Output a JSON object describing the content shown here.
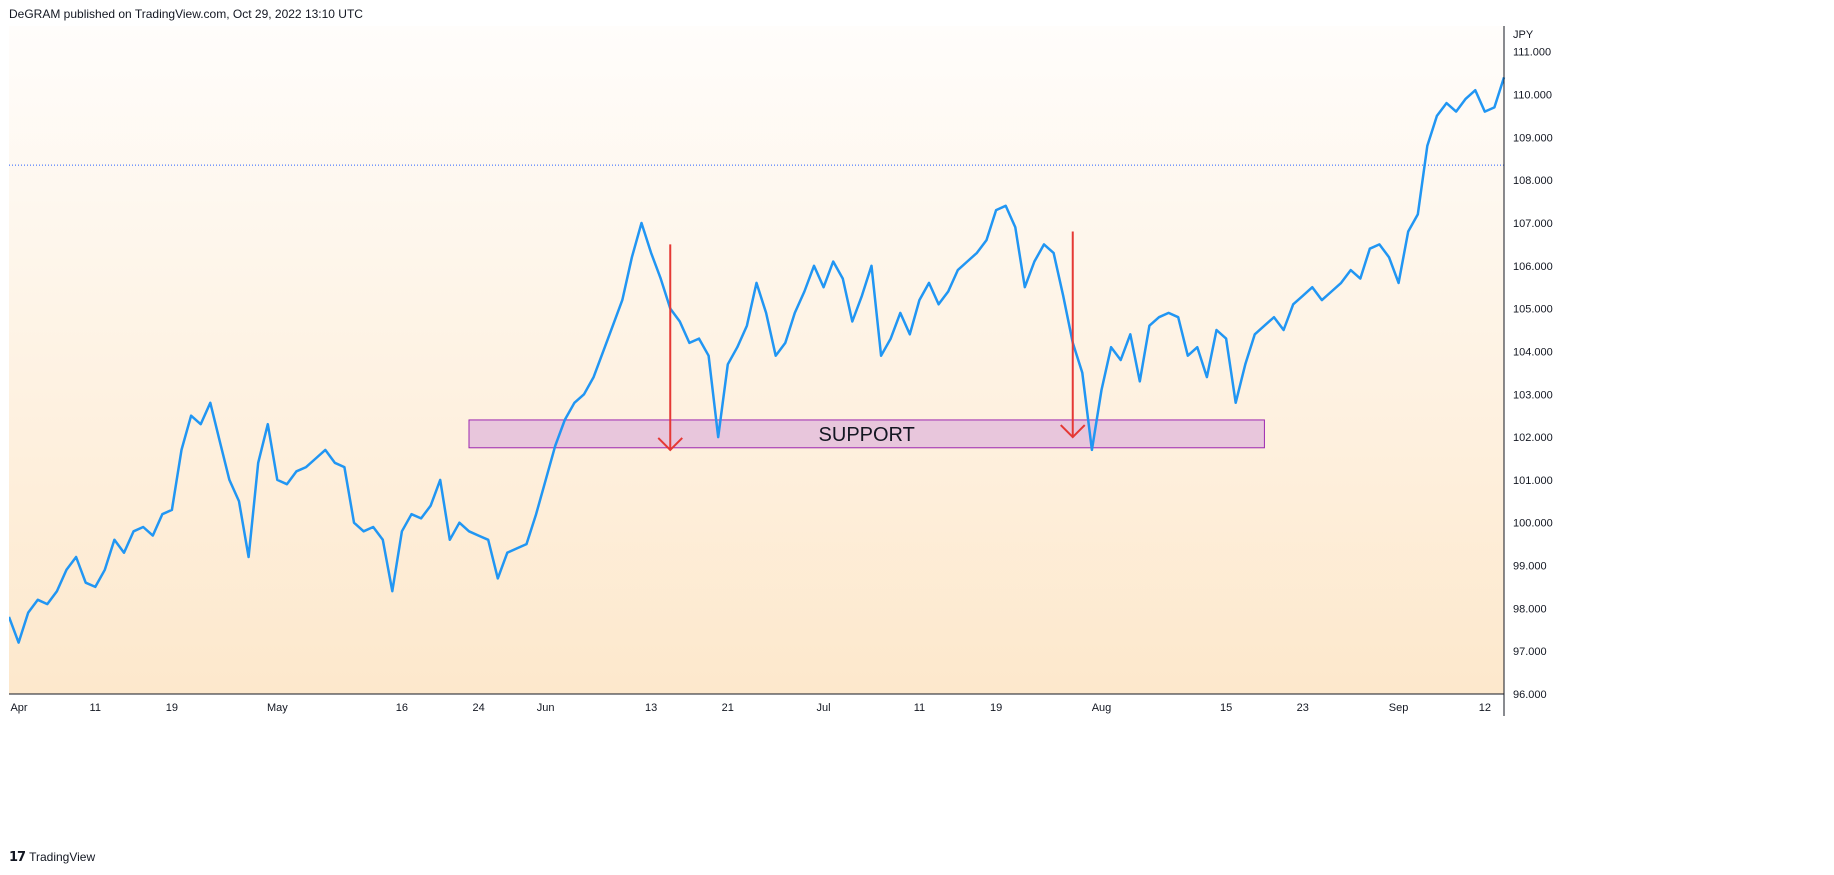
{
  "header": {
    "published": "DeGRAM published on TradingView.com, Oct 29, 2022 13:10 UTC"
  },
  "footer": {
    "brand": "TradingView",
    "logo_icon": "tradingview-logo-icon"
  },
  "colors": {
    "line": "#2196f3",
    "arrow": "#e53935",
    "support_fill": "#e8c6dc",
    "support_border": "#9c27b0",
    "hline": "#2962ff",
    "bg_top": "#fffdfb",
    "bg_bottom": "#fde8cc"
  },
  "chart_data": {
    "type": "line",
    "currency": "JPY",
    "ylim": [
      96,
      111.6
    ],
    "y_ticks": [
      "111.000",
      "110.000",
      "109.000",
      "108.000",
      "107.000",
      "106.000",
      "105.000",
      "104.000",
      "103.000",
      "102.000",
      "101.000",
      "100.000",
      "99.000",
      "98.000",
      "97.000",
      "96.000"
    ],
    "x_ticks": [
      "Apr",
      "11",
      "19",
      "May",
      "16",
      "24",
      "Jun",
      "13",
      "21",
      "Jul",
      "11",
      "19",
      "Aug",
      "15",
      "23",
      "Sep",
      "12"
    ],
    "x_tick_index": [
      0,
      9,
      17,
      28,
      41,
      49,
      56,
      67,
      75,
      85,
      95,
      103,
      114,
      127,
      135,
      145,
      154
    ],
    "series": [
      {
        "values": [
          97.8,
          97.2,
          97.9,
          98.2,
          98.1,
          98.4,
          98.9,
          99.2,
          98.6,
          98.5,
          98.9,
          99.6,
          99.3,
          99.8,
          99.9,
          99.7,
          100.2,
          100.3,
          101.7,
          102.5,
          102.3,
          102.8,
          101.9,
          101.0,
          100.5,
          99.2,
          101.4,
          102.3,
          101.0,
          100.9,
          101.2,
          101.3,
          101.5,
          101.7,
          101.4,
          101.3,
          100.0,
          99.8,
          99.9,
          99.6,
          98.4,
          99.8,
          100.2,
          100.1,
          100.4,
          101.0,
          99.6,
          100.0,
          99.8,
          99.7,
          99.6,
          98.7,
          99.3,
          99.4,
          99.5,
          100.2,
          101.0,
          101.8,
          102.4,
          102.8,
          103.0,
          103.4,
          104.0,
          104.6,
          105.2,
          106.2,
          107.0,
          106.3,
          105.7,
          105.0,
          104.7,
          104.2,
          104.3,
          103.9,
          102.0,
          103.7,
          104.1,
          104.6,
          105.6,
          104.9,
          103.9,
          104.2,
          104.9,
          105.4,
          106.0,
          105.5,
          106.1,
          105.7,
          104.7,
          105.3,
          106.0,
          103.9,
          104.3,
          104.9,
          104.4,
          105.2,
          105.6,
          105.1,
          105.4,
          105.9,
          106.1,
          106.3,
          106.6,
          107.3,
          107.4,
          106.9,
          105.5,
          106.1,
          106.5,
          106.3,
          105.3,
          104.2,
          103.5,
          101.7,
          103.1,
          104.1,
          103.8,
          104.4,
          103.3,
          104.6,
          104.8,
          104.9,
          104.8,
          103.9,
          104.1,
          103.4,
          104.5,
          104.3,
          102.8,
          103.7,
          104.4,
          104.6,
          104.8,
          104.5,
          105.1,
          105.3,
          105.5,
          105.2,
          105.4,
          105.6,
          105.9,
          105.7,
          106.4,
          106.5,
          106.2,
          105.6,
          106.8,
          107.2,
          108.8,
          109.5,
          109.8,
          109.6,
          109.9,
          110.1,
          109.6,
          109.7,
          110.4
        ]
      }
    ],
    "current_price_line": 108.35,
    "support_zone": {
      "label": "SUPPORT",
      "y_low": 101.75,
      "y_high": 102.4,
      "x_start_index": 48,
      "x_end_index": 131
    },
    "arrows": [
      {
        "x_index": 69,
        "y_from": 106.5,
        "y_to": 101.7
      },
      {
        "x_index": 111,
        "y_from": 106.8,
        "y_to": 102.0
      }
    ]
  }
}
